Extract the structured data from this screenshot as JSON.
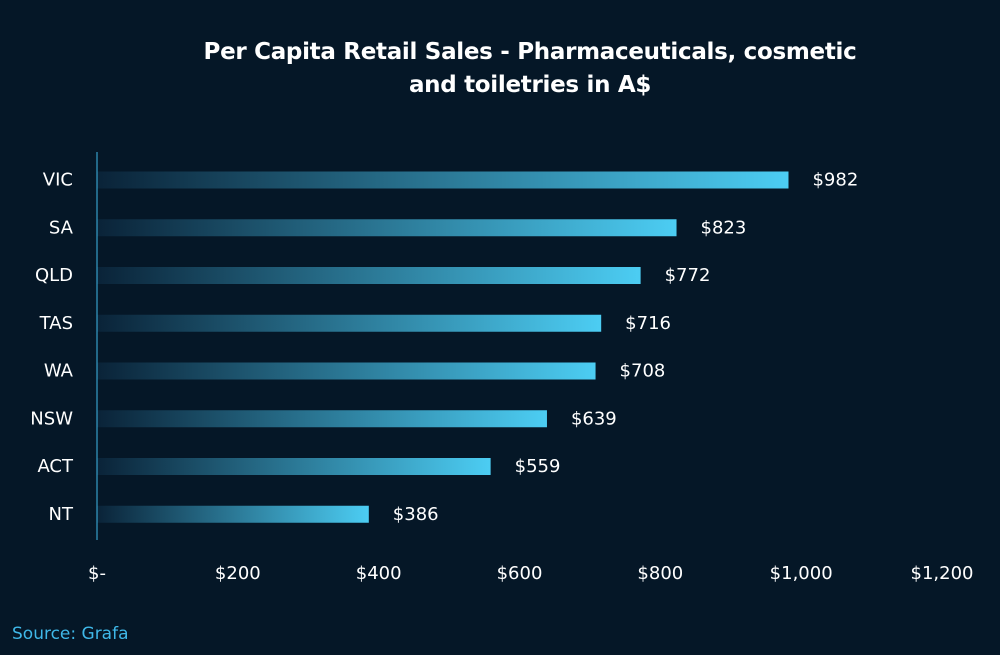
{
  "chart_data": {
    "type": "bar",
    "orientation": "horizontal",
    "title_lines": [
      "Per Capita Retail Sales - Pharmaceuticals, cosmetic",
      "and toiletries in A$"
    ],
    "categories": [
      "VIC",
      "SA",
      "QLD",
      "TAS",
      "WA",
      "NSW",
      "ACT",
      "NT"
    ],
    "values": [
      982,
      823,
      772,
      716,
      708,
      639,
      559,
      386
    ],
    "value_labels": [
      "$982",
      "$823",
      "$772",
      "$716",
      "$708",
      "$639",
      "$559",
      "$386"
    ],
    "xlim": [
      0,
      1200
    ],
    "x_ticks": [
      0,
      200,
      400,
      600,
      800,
      1000,
      1200
    ],
    "x_tick_labels": [
      "$-",
      "$200",
      "$400",
      "$600",
      "$800",
      "$1,000",
      "$1,200"
    ],
    "grid": false,
    "legend": "none",
    "colors": {
      "background": "#051727",
      "bar_start": "#0a2338",
      "bar_end": "#4ccdf3",
      "axis_line": "#3fb8e8",
      "text": "#ffffff"
    }
  },
  "source": "Source: Grafa"
}
